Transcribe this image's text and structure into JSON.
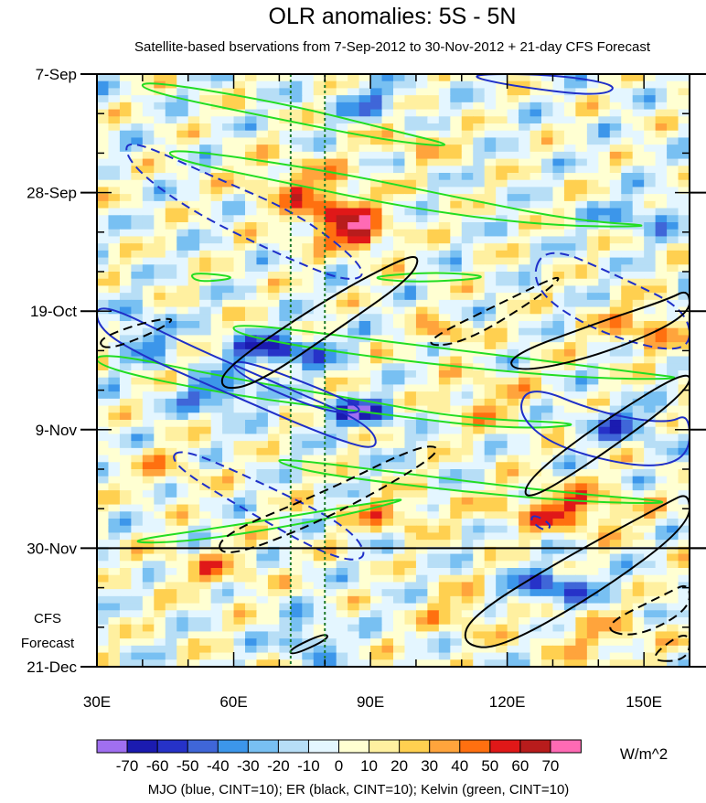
{
  "chart_data": {
    "type": "heatmap",
    "title": "OLR anomalies: 5S - 5N",
    "subtitle": "Satellite-based bservations from 7-Sep-2012 to 30-Nov-2012 + 21-day CFS Forecast",
    "x_range": [
      30,
      160
    ],
    "y_range_days": [
      0,
      105
    ],
    "x_ticks": [
      {
        "value": 30,
        "label": "30E"
      },
      {
        "value": 60,
        "label": "60E"
      },
      {
        "value": 90,
        "label": "90E"
      },
      {
        "value": 120,
        "label": "120E"
      },
      {
        "value": 150,
        "label": "150E"
      }
    ],
    "y_ticks": [
      {
        "value": 0,
        "label": "7-Sep"
      },
      {
        "value": 21,
        "label": "28-Sep"
      },
      {
        "value": 42,
        "label": "19-Oct"
      },
      {
        "value": 63,
        "label": "9-Nov"
      },
      {
        "value": 84,
        "label": "30-Nov"
      },
      {
        "value": 105,
        "label": "21-Dec"
      }
    ],
    "observation_end": {
      "day": 84,
      "label": "30-Nov"
    },
    "forecast_label": [
      "CFS",
      "Forecast"
    ],
    "reference_longitudes": [
      72.5,
      80
    ],
    "colorbar": {
      "units": "W/m^2",
      "levels": [
        -70,
        -60,
        -50,
        -40,
        -30,
        -20,
        -10,
        0,
        10,
        20,
        30,
        40,
        50,
        60,
        70
      ],
      "labels": [
        "-70",
        "-60",
        "-50",
        "-40",
        "-30",
        "-20",
        "-10",
        "0",
        "10",
        "20",
        "30",
        "40",
        "50",
        "60",
        "70"
      ],
      "colors": [
        "#a06ff0",
        "#1b1bb0",
        "#2632c8",
        "#3f66d8",
        "#3c96ea",
        "#78c0f2",
        "#b7def6",
        "#e4f6ff",
        "#ffffd2",
        "#fff0a0",
        "#ffd050",
        "#ffa43c",
        "#ff7010",
        "#e01818",
        "#b81c1c",
        "#ff6ab4"
      ]
    },
    "footer": "MJO (blue, CINT=10); ER (black, CINT=10); Kelvin (green, CINT=10)",
    "anomaly_features": [
      {
        "lon": 82,
        "day": 25,
        "lon_radius": 10,
        "day_radius": 4,
        "value": 50
      },
      {
        "lon": 88,
        "day": 29,
        "lon_radius": 6,
        "day_radius": 2.5,
        "value": 55
      },
      {
        "lon": 74,
        "day": 19,
        "lon_radius": 12,
        "day_radius": 4,
        "value": 30
      },
      {
        "lon": 106,
        "day": 46,
        "lon_radius": 4,
        "day_radius": 2,
        "value": 50
      },
      {
        "lon": 70,
        "day": 49,
        "lon_radius": 12,
        "day_radius": 3,
        "value": -55
      },
      {
        "lon": 88,
        "day": 60,
        "lon_radius": 8,
        "day_radius": 2.5,
        "value": -60
      },
      {
        "lon": 57,
        "day": 57,
        "lon_radius": 8,
        "day_radius": 3,
        "value": -45
      },
      {
        "lon": 40,
        "day": 46,
        "lon_radius": 6,
        "day_radius": 4,
        "value": -35
      },
      {
        "lon": 133,
        "day": 77,
        "lon_radius": 14,
        "day_radius": 4,
        "value": 45
      },
      {
        "lon": 130,
        "day": 91,
        "lon_radius": 10,
        "day_radius": 3,
        "value": -50
      },
      {
        "lon": 76,
        "day": 100,
        "lon_radius": 5,
        "day_radius": 4,
        "value": -35
      },
      {
        "lon": 150,
        "day": 45,
        "lon_radius": 10,
        "day_radius": 4,
        "value": 35
      },
      {
        "lon": 150,
        "day": 25,
        "lon_radius": 10,
        "day_radius": 3,
        "value": -30
      },
      {
        "lon": 90,
        "day": 5,
        "lon_radius": 8,
        "day_radius": 3,
        "value": -30
      },
      {
        "lon": 100,
        "day": 12,
        "lon_radius": 8,
        "day_radius": 3,
        "value": 25
      },
      {
        "lon": 115,
        "day": 58,
        "lon_radius": 10,
        "day_radius": 5,
        "value": 25
      },
      {
        "lon": 145,
        "day": 62,
        "lon_radius": 8,
        "day_radius": 3,
        "value": -40
      },
      {
        "lon": 95,
        "day": 78,
        "lon_radius": 10,
        "day_radius": 3,
        "value": 30
      },
      {
        "lon": 55,
        "day": 88,
        "lon_radius": 10,
        "day_radius": 4,
        "value": 25
      },
      {
        "lon": 45,
        "day": 70,
        "lon_radius": 8,
        "day_radius": 4,
        "value": 20
      },
      {
        "lon": 140,
        "day": 100,
        "lon_radius": 14,
        "day_radius": 5,
        "value": 20
      },
      {
        "lon": 110,
        "day": 95,
        "lon_radius": 8,
        "day_radius": 4,
        "value": 25
      }
    ],
    "mjo_contours": [
      {
        "sign": "positive",
        "points": [
          [
            30,
            40
          ],
          [
            50,
            48
          ],
          [
            70,
            55
          ],
          [
            90,
            62
          ],
          [
            92,
            67
          ],
          [
            80,
            64
          ],
          [
            60,
            57
          ],
          [
            40,
            50
          ],
          [
            30,
            45
          ]
        ]
      },
      {
        "sign": "positive",
        "points": [
          [
            60,
            50
          ],
          [
            80,
            56
          ],
          [
            90,
            60
          ],
          [
            80,
            60
          ],
          [
            60,
            53
          ]
        ]
      },
      {
        "sign": "positive",
        "points": [
          [
            125,
            55
          ],
          [
            140,
            60
          ],
          [
            155,
            62
          ],
          [
            160,
            60
          ],
          [
            160,
            68
          ],
          [
            150,
            70
          ],
          [
            130,
            66
          ],
          [
            122,
            60
          ]
        ]
      },
      {
        "sign": "positive",
        "points": [
          [
            110,
            0
          ],
          [
            130,
            0
          ],
          [
            145,
            2
          ],
          [
            140,
            4
          ],
          [
            120,
            2
          ]
        ]
      },
      {
        "sign": "negative",
        "points": [
          [
            36,
            11
          ],
          [
            55,
            18
          ],
          [
            75,
            25
          ],
          [
            90,
            35
          ],
          [
            85,
            37
          ],
          [
            70,
            32
          ],
          [
            50,
            24
          ],
          [
            37,
            16
          ]
        ]
      },
      {
        "sign": "negative",
        "points": [
          [
            48,
            66
          ],
          [
            65,
            72
          ],
          [
            85,
            80
          ],
          [
            90,
            86
          ],
          [
            82,
            86
          ],
          [
            62,
            77
          ],
          [
            46,
            69
          ]
        ]
      },
      {
        "sign": "negative",
        "points": [
          [
            128,
            30
          ],
          [
            145,
            36
          ],
          [
            160,
            42
          ],
          [
            160,
            50
          ],
          [
            140,
            46
          ],
          [
            125,
            38
          ]
        ]
      },
      {
        "sign": "negative",
        "points": [
          [
            126,
            78
          ],
          [
            130,
            80
          ],
          [
            128,
            81
          ],
          [
            125,
            79
          ]
        ]
      }
    ],
    "er_contours": [
      {
        "sign": "positive",
        "points": [
          [
            58,
            52
          ],
          [
            80,
            40
          ],
          [
            96,
            33
          ],
          [
            101,
            32
          ],
          [
            99,
            36
          ],
          [
            85,
            44
          ],
          [
            65,
            55
          ],
          [
            57,
            56
          ]
        ]
      },
      {
        "sign": "positive",
        "points": [
          [
            124,
            72
          ],
          [
            140,
            62
          ],
          [
            160,
            52
          ],
          [
            160,
            56
          ],
          [
            140,
            68
          ],
          [
            124,
            76
          ]
        ]
      },
      {
        "sign": "positive",
        "points": [
          [
            112,
            96
          ],
          [
            132,
            86
          ],
          [
            155,
            76
          ],
          [
            160,
            74
          ],
          [
            160,
            80
          ],
          [
            140,
            92
          ],
          [
            118,
            102
          ],
          [
            110,
            101
          ]
        ]
      },
      {
        "sign": "positive",
        "points": [
          [
            120,
            50
          ],
          [
            140,
            44
          ],
          [
            155,
            40
          ],
          [
            160,
            38
          ],
          [
            160,
            43
          ],
          [
            140,
            50
          ],
          [
            122,
            53
          ]
        ]
      },
      {
        "sign": "positive",
        "points": [
          [
            72,
            102
          ],
          [
            80,
            99
          ],
          [
            81,
            100
          ],
          [
            73,
            103
          ]
        ]
      },
      {
        "sign": "negative",
        "points": [
          [
            56,
            82
          ],
          [
            80,
            74
          ],
          [
            100,
            66
          ],
          [
            106,
            66
          ],
          [
            100,
            70
          ],
          [
            80,
            79
          ],
          [
            58,
            86
          ]
        ]
      },
      {
        "sign": "negative",
        "points": [
          [
            100,
            48
          ],
          [
            120,
            40
          ],
          [
            133,
            35
          ],
          [
            128,
            39
          ],
          [
            110,
            48
          ]
        ]
      },
      {
        "sign": "negative",
        "points": [
          [
            30,
            47
          ],
          [
            40,
            44
          ],
          [
            48,
            43
          ],
          [
            42,
            46
          ],
          [
            32,
            49
          ]
        ]
      },
      {
        "sign": "negative",
        "points": [
          [
            140,
            98
          ],
          [
            155,
            92
          ],
          [
            160,
            90
          ],
          [
            160,
            95
          ],
          [
            148,
            100
          ]
        ]
      },
      {
        "sign": "negative",
        "points": [
          [
            150,
            104
          ],
          [
            160,
            98
          ],
          [
            160,
            104
          ]
        ]
      }
    ],
    "kelvin_contours": [
      {
        "sign": "positive",
        "points": [
          [
            40,
            1
          ],
          [
            70,
            5
          ],
          [
            95,
            10
          ],
          [
            110,
            13
          ],
          [
            95,
            12
          ],
          [
            70,
            8
          ],
          [
            40,
            3
          ]
        ]
      },
      {
        "sign": "positive",
        "points": [
          [
            46,
            13
          ],
          [
            80,
            17
          ],
          [
            110,
            22
          ],
          [
            135,
            26
          ],
          [
            155,
            27
          ],
          [
            130,
            27
          ],
          [
            100,
            24
          ],
          [
            70,
            19
          ],
          [
            46,
            15
          ]
        ]
      },
      {
        "sign": "positive",
        "points": [
          [
            30,
            49
          ],
          [
            60,
            54
          ],
          [
            90,
            58
          ],
          [
            110,
            61
          ],
          [
            140,
            62
          ],
          [
            120,
            63
          ],
          [
            90,
            60
          ],
          [
            60,
            57
          ],
          [
            30,
            52
          ]
        ]
      },
      {
        "sign": "positive",
        "points": [
          [
            60,
            44
          ],
          [
            90,
            47
          ],
          [
            120,
            50
          ],
          [
            150,
            53
          ],
          [
            160,
            54
          ],
          [
            140,
            54
          ],
          [
            110,
            52
          ],
          [
            80,
            49
          ],
          [
            60,
            46
          ]
        ]
      },
      {
        "sign": "positive",
        "points": [
          [
            70,
            68
          ],
          [
            100,
            71
          ],
          [
            130,
            74
          ],
          [
            160,
            76
          ],
          [
            140,
            76
          ],
          [
            110,
            74
          ],
          [
            80,
            71
          ],
          [
            70,
            69
          ]
        ]
      },
      {
        "sign": "positive",
        "points": [
          [
            34,
            83
          ],
          [
            60,
            80
          ],
          [
            90,
            76
          ],
          [
            100,
            75
          ],
          [
            80,
            79
          ],
          [
            50,
            83
          ]
        ]
      },
      {
        "sign": "positive",
        "points": [
          [
            88,
            36
          ],
          [
            105,
            35
          ],
          [
            118,
            36
          ],
          [
            100,
            37
          ]
        ]
      },
      {
        "sign": "positive",
        "points": [
          [
            50,
            35
          ],
          [
            62,
            36
          ],
          [
            52,
            37
          ]
        ]
      }
    ]
  }
}
